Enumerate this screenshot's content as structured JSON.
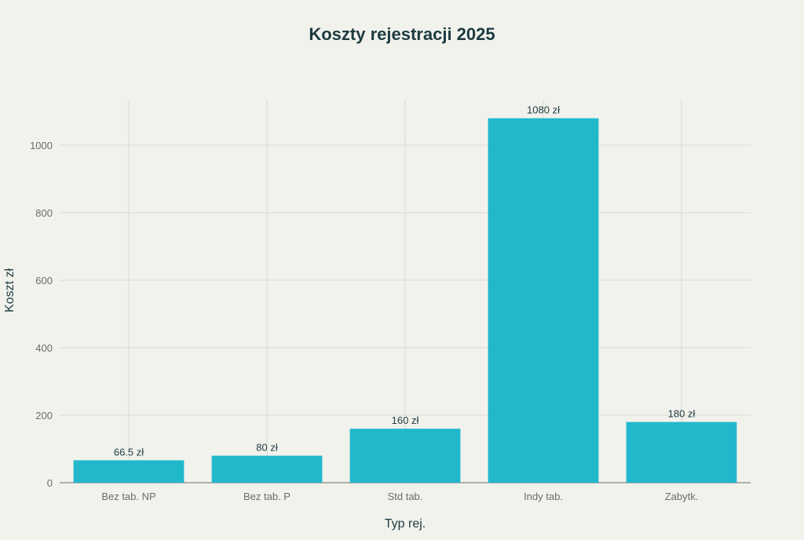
{
  "chart_data": {
    "type": "bar",
    "title": "Koszty rejestracji 2025",
    "xlabel": "Typ rej.",
    "ylabel": "Koszt zł",
    "categories": [
      "Bez tab. NP",
      "Bez tab. P",
      "Std tab.",
      "Indy tab.",
      "Zabytk."
    ],
    "values": [
      66.5,
      80,
      160,
      1080,
      180
    ],
    "data_labels": [
      "66.5 zł",
      "80 zł",
      "160 zł",
      "1080 zł",
      "180 zł"
    ],
    "yticks": [
      0,
      200,
      400,
      600,
      800,
      1000
    ],
    "ylim": [
      0,
      1135
    ],
    "grid": true,
    "legend": "none",
    "bar_color": "#22b8cc",
    "grid_color": "#d9d9d4",
    "axis_color": "#6b6b6b"
  }
}
